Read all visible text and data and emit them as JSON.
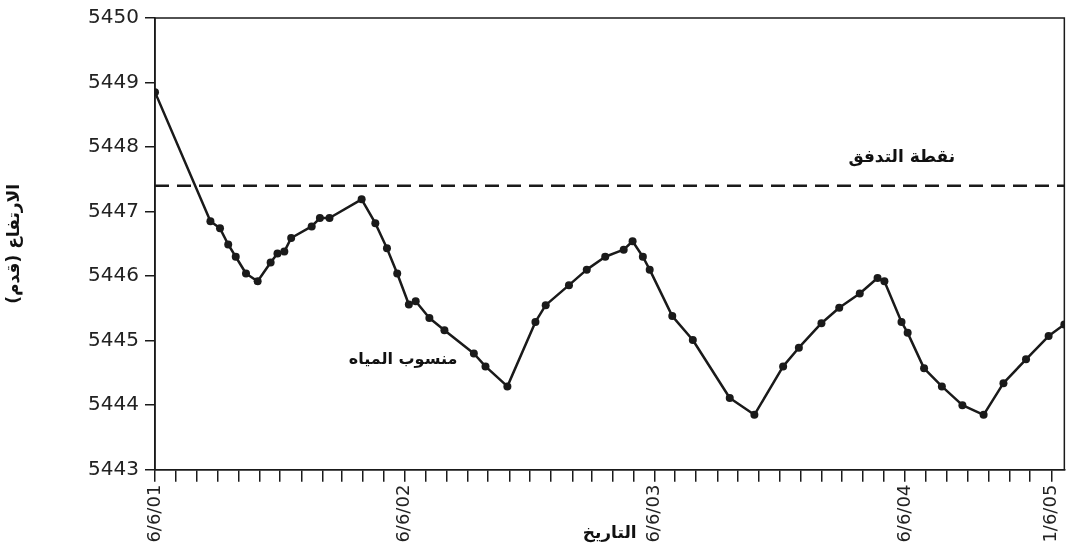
{
  "chart_data": {
    "type": "line",
    "xlabel": "التاريخ",
    "ylabel": "الارتفاع (قدم)",
    "xlim": [
      "2001-06-06",
      "2005-01-25"
    ],
    "ylim": [
      5443,
      5450
    ],
    "yticks": [
      5443,
      5444,
      5445,
      5446,
      5447,
      5448,
      5449,
      5450
    ],
    "xticks": [
      {
        "value": "2001-06-06",
        "label": "6/6/01"
      },
      {
        "value": "2001-07-06",
        "label": null
      },
      {
        "value": "2001-08-06",
        "label": null
      },
      {
        "value": "2001-09-06",
        "label": null
      },
      {
        "value": "2001-10-06",
        "label": null
      },
      {
        "value": "2001-11-06",
        "label": null
      },
      {
        "value": "2001-12-06",
        "label": null
      },
      {
        "value": "2002-01-06",
        "label": null
      },
      {
        "value": "2002-02-06",
        "label": null
      },
      {
        "value": "2002-03-06",
        "label": null
      },
      {
        "value": "2002-04-06",
        "label": null
      },
      {
        "value": "2002-05-06",
        "label": null
      },
      {
        "value": "2002-06-06",
        "label": "6/6/02"
      },
      {
        "value": "2002-07-06",
        "label": null
      },
      {
        "value": "2002-08-06",
        "label": null
      },
      {
        "value": "2002-09-06",
        "label": null
      },
      {
        "value": "2002-10-06",
        "label": null
      },
      {
        "value": "2002-11-06",
        "label": null
      },
      {
        "value": "2002-12-06",
        "label": null
      },
      {
        "value": "2003-01-06",
        "label": null
      },
      {
        "value": "2003-02-06",
        "label": null
      },
      {
        "value": "2003-03-06",
        "label": null
      },
      {
        "value": "2003-04-06",
        "label": null
      },
      {
        "value": "2003-05-06",
        "label": null
      },
      {
        "value": "2003-06-06",
        "label": "6/6/03"
      },
      {
        "value": "2003-07-06",
        "label": null
      },
      {
        "value": "2003-08-06",
        "label": null
      },
      {
        "value": "2003-09-06",
        "label": null
      },
      {
        "value": "2003-10-06",
        "label": null
      },
      {
        "value": "2003-11-06",
        "label": null
      },
      {
        "value": "2003-12-06",
        "label": null
      },
      {
        "value": "2004-01-06",
        "label": null
      },
      {
        "value": "2004-02-06",
        "label": null
      },
      {
        "value": "2004-03-06",
        "label": null
      },
      {
        "value": "2004-04-06",
        "label": null
      },
      {
        "value": "2004-05-06",
        "label": null
      },
      {
        "value": "2004-06-06",
        "label": "6/6/04"
      },
      {
        "value": "2004-07-06",
        "label": null
      },
      {
        "value": "2004-08-06",
        "label": null
      },
      {
        "value": "2004-09-06",
        "label": null
      },
      {
        "value": "2004-10-06",
        "label": null
      },
      {
        "value": "2004-11-06",
        "label": null
      },
      {
        "value": "2004-12-06",
        "label": null
      },
      {
        "value": "2005-01-06",
        "label": "1/6/05"
      }
    ],
    "grid": false,
    "legend": false,
    "marker": "circle",
    "line_style": "solid",
    "ref_lines": [
      {
        "axis": "y",
        "value": 5447.4,
        "label": "نقطة التدفق",
        "line_style": "dashed",
        "color": "#1a1a1a"
      }
    ],
    "series": [
      {
        "name": "منسوب المياه",
        "color": "#1a1a1a",
        "x": [
          "2001-06-06",
          "2001-08-26",
          "2001-09-09",
          "2001-09-21",
          "2001-10-02",
          "2001-10-17",
          "2001-11-03",
          "2001-11-22",
          "2001-12-02",
          "2001-12-12",
          "2001-12-22",
          "2002-01-21",
          "2002-02-02",
          "2002-02-16",
          "2002-04-04",
          "2002-04-24",
          "2002-05-11",
          "2002-05-26",
          "2002-06-12",
          "2002-06-22",
          "2002-07-12",
          "2002-08-03",
          "2002-09-15",
          "2002-10-02",
          "2002-11-03",
          "2002-12-14",
          "2002-12-29",
          "2003-02-01",
          "2003-02-27",
          "2003-03-26",
          "2003-04-22",
          "2003-05-05",
          "2003-05-20",
          "2003-05-30",
          "2003-07-02",
          "2003-08-01",
          "2003-09-24",
          "2003-10-30",
          "2003-12-11",
          "2004-01-03",
          "2004-02-05",
          "2004-03-02",
          "2004-04-01",
          "2004-04-27",
          "2004-05-07",
          "2004-06-01",
          "2004-06-10",
          "2004-07-04",
          "2004-07-30",
          "2004-08-29",
          "2004-09-29",
          "2004-10-28",
          "2004-11-30",
          "2005-01-02",
          "2005-01-25"
        ],
        "values": [
          5448.85,
          5446.85,
          5446.74,
          5446.49,
          5446.3,
          5446.04,
          5445.92,
          5446.21,
          5446.35,
          5446.38,
          5446.59,
          5446.77,
          5446.9,
          5446.9,
          5447.19,
          5446.82,
          5446.43,
          5446.04,
          5445.56,
          5445.61,
          5445.35,
          5445.16,
          5444.8,
          5444.6,
          5444.29,
          5445.29,
          5445.55,
          5445.86,
          5446.1,
          5446.3,
          5446.41,
          5446.54,
          5446.3,
          5446.1,
          5445.38,
          5445.01,
          5444.11,
          5443.85,
          5444.6,
          5444.89,
          5445.27,
          5445.51,
          5445.73,
          5445.97,
          5445.92,
          5445.29,
          5445.12,
          5444.57,
          5444.29,
          5444.0,
          5443.85,
          5444.34,
          5444.71,
          5445.07,
          5445.25
        ]
      }
    ]
  }
}
